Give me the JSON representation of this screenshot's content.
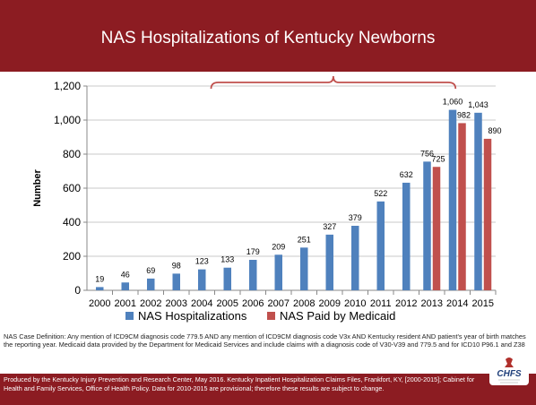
{
  "slide": {
    "title": "NAS Hospitalizations of Kentucky Newborns",
    "footnote": "NAS Case Definition: Any mention of ICD9CM diagnosis code 779.5 AND any mention of ICD9CM diagnosis code V3x AND Kentucky resident AND patient's year of birth matches the reporting year. Medicaid data provided by the Department for Medicaid Services and include claims with a diagnosis code of V30-V39 and 779.5 and for ICD10 P96.1 and Z38",
    "footer": "Produced by the Kentucky Injury Prevention and Research Center, May 2016. Kentucky Inpatient Hospitalization Claims Files, Frankfort, KY, [2000-2015]; Cabinet for Health and Family Services, Office of Health Policy. Data for 2010-2015 are provisional; therefore these results are subject to change.",
    "logo_text": "CHFS",
    "colors": {
      "title_bar": "#8c1c22",
      "series_hosp": "#4f81bd",
      "series_medicaid": "#c0504d",
      "brace": "#c0504d"
    }
  },
  "chart_data": {
    "type": "bar",
    "categories": [
      "2000",
      "2001",
      "2002",
      "2003",
      "2004",
      "2005",
      "2006",
      "2007",
      "2008",
      "2009",
      "2010",
      "2011",
      "2012",
      "2013",
      "2014",
      "2015"
    ],
    "series": [
      {
        "name": "NAS Hospitalizations",
        "color": "#4f81bd",
        "values": [
          19,
          46,
          69,
          98,
          123,
          133,
          179,
          209,
          251,
          327,
          379,
          522,
          632,
          756,
          1060,
          1043
        ],
        "labels": [
          "19",
          "46",
          "69",
          "98",
          "123",
          "133",
          "179",
          "209",
          "251",
          "327",
          "379",
          "522",
          "632",
          "756",
          "1,060",
          "1,043"
        ]
      },
      {
        "name": "NAS Paid by Medicaid",
        "color": "#c0504d",
        "values": [
          null,
          null,
          null,
          null,
          null,
          null,
          null,
          null,
          null,
          null,
          null,
          null,
          null,
          725,
          982,
          890
        ],
        "labels": [
          "",
          "",
          "",
          "",
          "",
          "",
          "",
          "",
          "",
          "",
          "",
          "",
          "",
          "725",
          "982",
          "890"
        ]
      }
    ],
    "ylabel": "Number",
    "ylim": [
      0,
      1200
    ],
    "yticks": [
      0,
      200,
      400,
      600,
      800,
      1000,
      1200
    ],
    "ytick_labels": [
      "0",
      "200",
      "400",
      "600",
      "800",
      "1,000",
      "1,200"
    ],
    "legend_position": "bottom",
    "annotation": "bracket spanning 2005-2014 above the bars",
    "bracket_span": [
      "2005",
      "2014"
    ]
  }
}
